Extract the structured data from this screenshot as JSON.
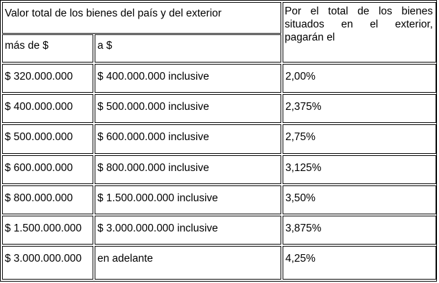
{
  "header": {
    "total_value_label": "Valor total de los bienes del país y del exterior",
    "rate_header": "Por el total de los bienes situados en el exterior, pagarán el",
    "from_label": "más de $",
    "to_label": "a $"
  },
  "rows": [
    {
      "from": "$ 320.000.000",
      "to": "$ 400.000.000 inclusive",
      "rate": "2,00%"
    },
    {
      "from": "$ 400.000.000",
      "to": "$ 500.000.000 inclusive",
      "rate": "2,375%"
    },
    {
      "from": "$ 500.000.000",
      "to": "$ 600.000.000 inclusive",
      "rate": "2,75%"
    },
    {
      "from": "$ 600.000.000",
      "to": "$ 800.000.000 inclusive",
      "rate": "3,125%"
    },
    {
      "from": "$ 800.000.000",
      "to": "$ 1.500.000.000 inclusive",
      "rate": "3,50%"
    },
    {
      "from": "$ 1.500.000.000",
      "to": "$ 3.000.000.000 inclusive",
      "rate": "3,875%"
    },
    {
      "from": "$ 3.000.000.000",
      "to": "en adelante",
      "rate": "4,25%"
    }
  ]
}
